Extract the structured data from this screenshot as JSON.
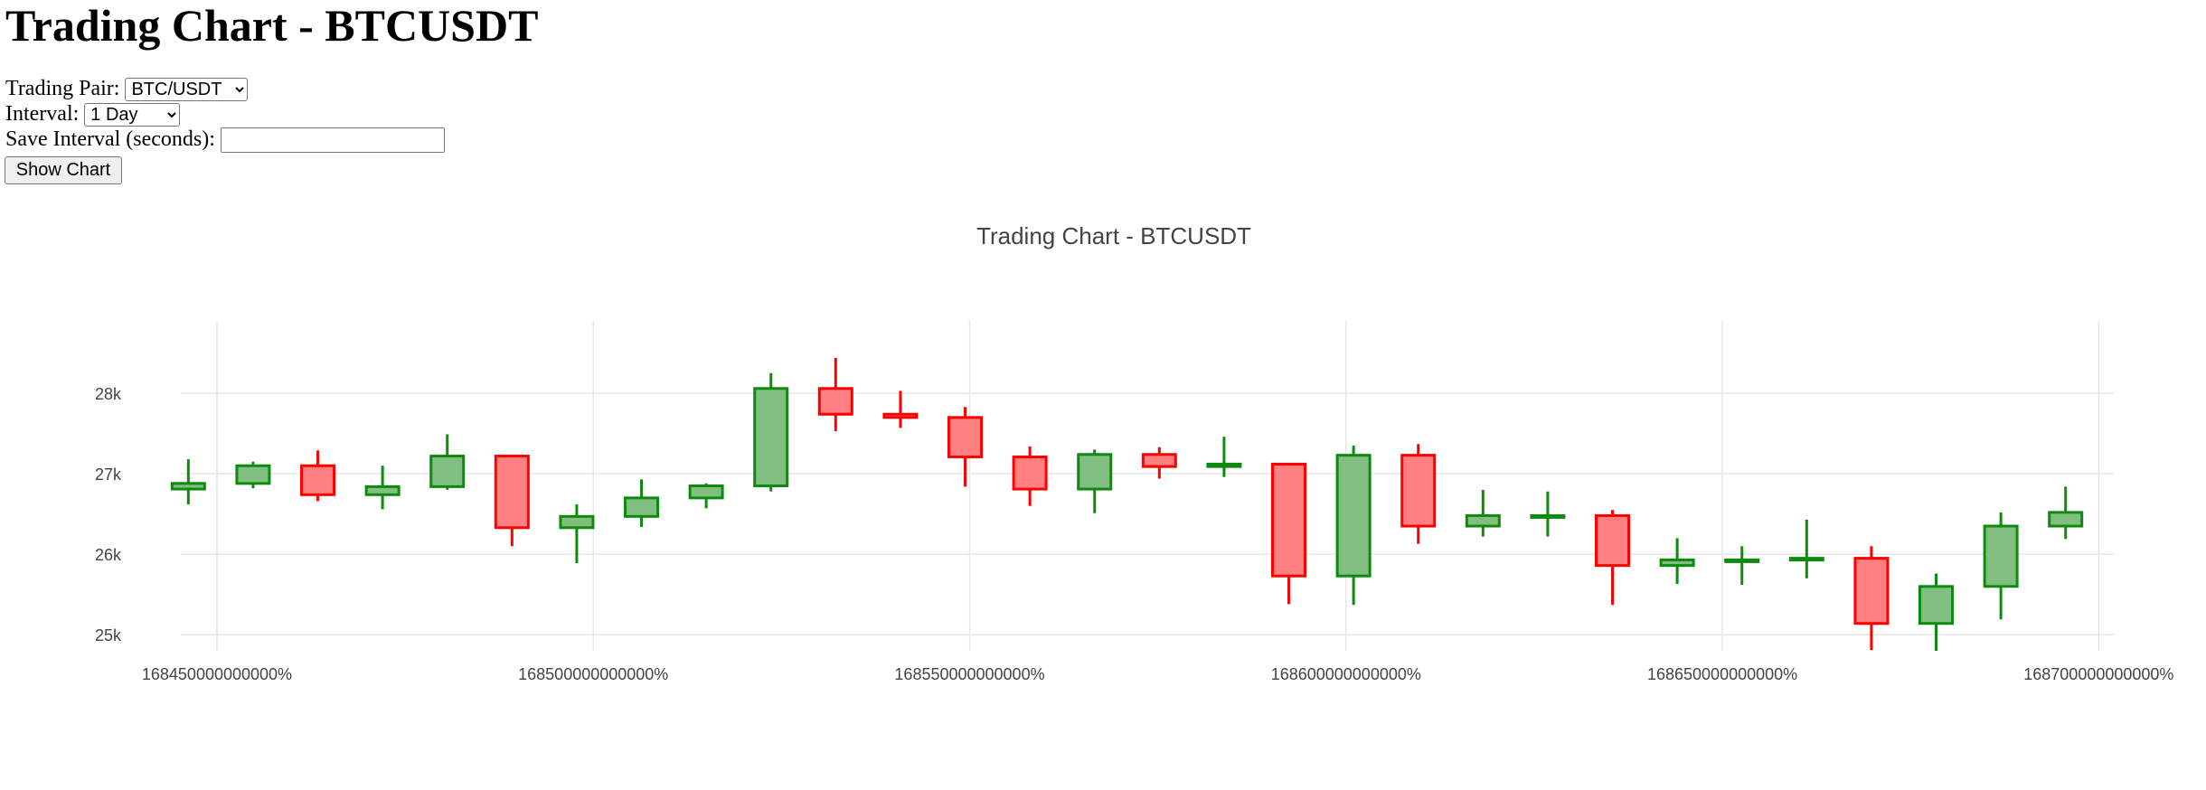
{
  "page": {
    "heading": "Trading Chart - BTCUSDT",
    "pair_label": "Trading Pair: ",
    "pair_value": "BTC/USDT",
    "interval_label": "Interval: ",
    "interval_value": "1 Day",
    "save_label": "Save Interval (seconds): ",
    "save_value": "",
    "button_label": "Show Chart"
  },
  "chart_data": {
    "type": "candlestick",
    "title": "Trading Chart - BTCUSDT",
    "xlabel": "",
    "ylabel": "",
    "xlim": [
      168445200000000,
      168702000000000
    ],
    "ylim": [
      24800,
      28900
    ],
    "grid": true,
    "legend": "none",
    "up_color": "#0e8a0e",
    "up_fill": "#80bf80",
    "down_color": "#ff0000",
    "down_fill": "#ff8080",
    "x_ticks": [
      168450000000000,
      168500000000000,
      168550000000000,
      168600000000000,
      168650000000000,
      168700000000000
    ],
    "x_tick_labels": [
      "168450000000000%",
      "168500000000000%",
      "168550000000000%",
      "168600000000000%",
      "168650000000000%",
      "168700000000000%"
    ],
    "y_ticks": [
      25000,
      26000,
      27000,
      28000
    ],
    "y_tick_labels": [
      "25k",
      "26k",
      "27k",
      "28k"
    ],
    "x": [
      168446200000000,
      168454800000000,
      168463400000000,
      168472000000000,
      168480600000000,
      168489200000000,
      168497800000000,
      168506400000000,
      168515000000000,
      168523600000000,
      168532200000000,
      168540800000000,
      168549400000000,
      168558000000000,
      168566600000000,
      168575200000000,
      168583800000000,
      168592400000000,
      168601000000000,
      168609600000000,
      168618200000000,
      168626800000000,
      168635400000000,
      168644000000000,
      168652600000000,
      168661200000000,
      168669800000000,
      168678400000000,
      168687000000000,
      168695600000000
    ],
    "open": [
      26810,
      26880,
      27100,
      26740,
      26840,
      27220,
      26330,
      26470,
      26700,
      26850,
      28060,
      27740,
      27700,
      27210,
      26810,
      27240,
      27090,
      27120,
      25730,
      27230,
      26350,
      26480,
      26480,
      25860,
      25930,
      25930,
      25950,
      25140,
      25600,
      26350
    ],
    "high": [
      27180,
      27150,
      27290,
      27100,
      27490,
      27220,
      26620,
      26930,
      26880,
      28250,
      28440,
      28030,
      27830,
      27340,
      27300,
      27330,
      27460,
      27120,
      27350,
      27370,
      26800,
      26780,
      26550,
      26200,
      26100,
      26430,
      26100,
      25760,
      26520,
      26840
    ],
    "low": [
      26620,
      26820,
      26660,
      26560,
      26800,
      26100,
      25890,
      26340,
      26570,
      26780,
      27530,
      27570,
      26840,
      26600,
      26510,
      26940,
      26960,
      25380,
      25370,
      26130,
      26220,
      26220,
      25370,
      25630,
      25620,
      25700,
      24810,
      24800,
      25190,
      26190
    ],
    "close": [
      26880,
      27100,
      26740,
      26840,
      27220,
      26330,
      26470,
      26700,
      26850,
      28060,
      27740,
      27700,
      27210,
      26810,
      27240,
      27090,
      27120,
      25730,
      27230,
      26350,
      26480,
      26480,
      25860,
      25930,
      25930,
      25950,
      25140,
      25600,
      26350,
      26520
    ]
  }
}
